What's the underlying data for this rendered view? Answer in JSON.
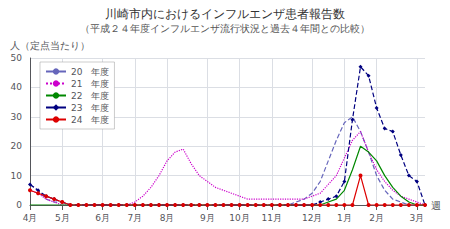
{
  "chart_data": {
    "type": "line",
    "title": "川崎市内におけるインフルエンザ患者報告数",
    "subtitle": "（平成２４年度インフルエンザ流行状況と過去４年間との比較）",
    "ylabel": "人（定点当たり）",
    "xlabel": "週",
    "categories": [
      "4月",
      null,
      null,
      null,
      "5月",
      null,
      null,
      null,
      null,
      "6月",
      null,
      null,
      null,
      "7月",
      null,
      null,
      null,
      "8月",
      null,
      null,
      null,
      null,
      "9月",
      null,
      null,
      null,
      "10月",
      null,
      null,
      null,
      "11月",
      null,
      null,
      null,
      null,
      "12月",
      null,
      null,
      null,
      "1月",
      null,
      null,
      null,
      "2月",
      null,
      null,
      null,
      null,
      "3月",
      null
    ],
    "series": [
      {
        "name": "20　年度",
        "color": "#6666bb",
        "line_style": "dashed",
        "marker": "none",
        "values": [
          7,
          5,
          2,
          1,
          1,
          0,
          0,
          0,
          0,
          0,
          0,
          0,
          0,
          0,
          0,
          0,
          0,
          0,
          0,
          0,
          0,
          0,
          0,
          0,
          0,
          0,
          0,
          0,
          0,
          0,
          0,
          0,
          0,
          1,
          2,
          4,
          8,
          15,
          22,
          28,
          30,
          25,
          18,
          10,
          5,
          2,
          1,
          0,
          0,
          0
        ]
      },
      {
        "name": "21　年度",
        "color": "#cc00cc",
        "line_style": "dotted",
        "marker": "none",
        "values": [
          5,
          4,
          2,
          1,
          0,
          0,
          0,
          0,
          0,
          0,
          0,
          0,
          0,
          1,
          3,
          6,
          10,
          15,
          18,
          19,
          14,
          10,
          8,
          6,
          5,
          4,
          3,
          2,
          2,
          2,
          2,
          2,
          2,
          2,
          2,
          3,
          4,
          7,
          10,
          16,
          22,
          25,
          18,
          12,
          8,
          5,
          3,
          2,
          1,
          0
        ]
      },
      {
        "name": "22　年度",
        "color": "#008800",
        "line_style": "solid",
        "marker": "none",
        "values": [
          0,
          0,
          0,
          0,
          0,
          0,
          0,
          0,
          0,
          0,
          0,
          0,
          0,
          0,
          0,
          0,
          0,
          0,
          0,
          0,
          0,
          0,
          0,
          0,
          0,
          0,
          0,
          0,
          0,
          0,
          0,
          0,
          0,
          0,
          0,
          0,
          0,
          1,
          2,
          5,
          12,
          20,
          18,
          15,
          10,
          6,
          3,
          1,
          0,
          0
        ]
      },
      {
        "name": "23　年度",
        "color": "#000080",
        "line_style": "dashed",
        "marker": "diamond",
        "values": [
          7,
          5,
          3,
          2,
          1,
          0,
          0,
          0,
          0,
          0,
          0,
          0,
          0,
          0,
          0,
          0,
          0,
          0,
          0,
          0,
          0,
          0,
          0,
          0,
          0,
          0,
          0,
          0,
          0,
          0,
          0,
          0,
          0,
          0,
          0,
          0,
          1,
          2,
          3,
          8,
          29,
          47,
          44,
          33,
          26,
          25,
          17,
          10,
          8,
          0
        ]
      },
      {
        "name": "24　年度",
        "color": "#dd0000",
        "line_style": "solid",
        "marker": "circle",
        "values": [
          5,
          4,
          3,
          2,
          1,
          0,
          0,
          0,
          0,
          0,
          0,
          0,
          0,
          0,
          0,
          0,
          0,
          0,
          0,
          0,
          0,
          0,
          0,
          0,
          0,
          0,
          0,
          0,
          0,
          0,
          0,
          0,
          0,
          0,
          0,
          0,
          0,
          0,
          0,
          0,
          0,
          10,
          0,
          0,
          0,
          0,
          0,
          0,
          0,
          0
        ]
      }
    ],
    "ylim": [
      0,
      50
    ],
    "yticks": [
      0,
      10,
      20,
      30,
      40,
      50
    ],
    "grid": true,
    "legend": "upper left"
  }
}
